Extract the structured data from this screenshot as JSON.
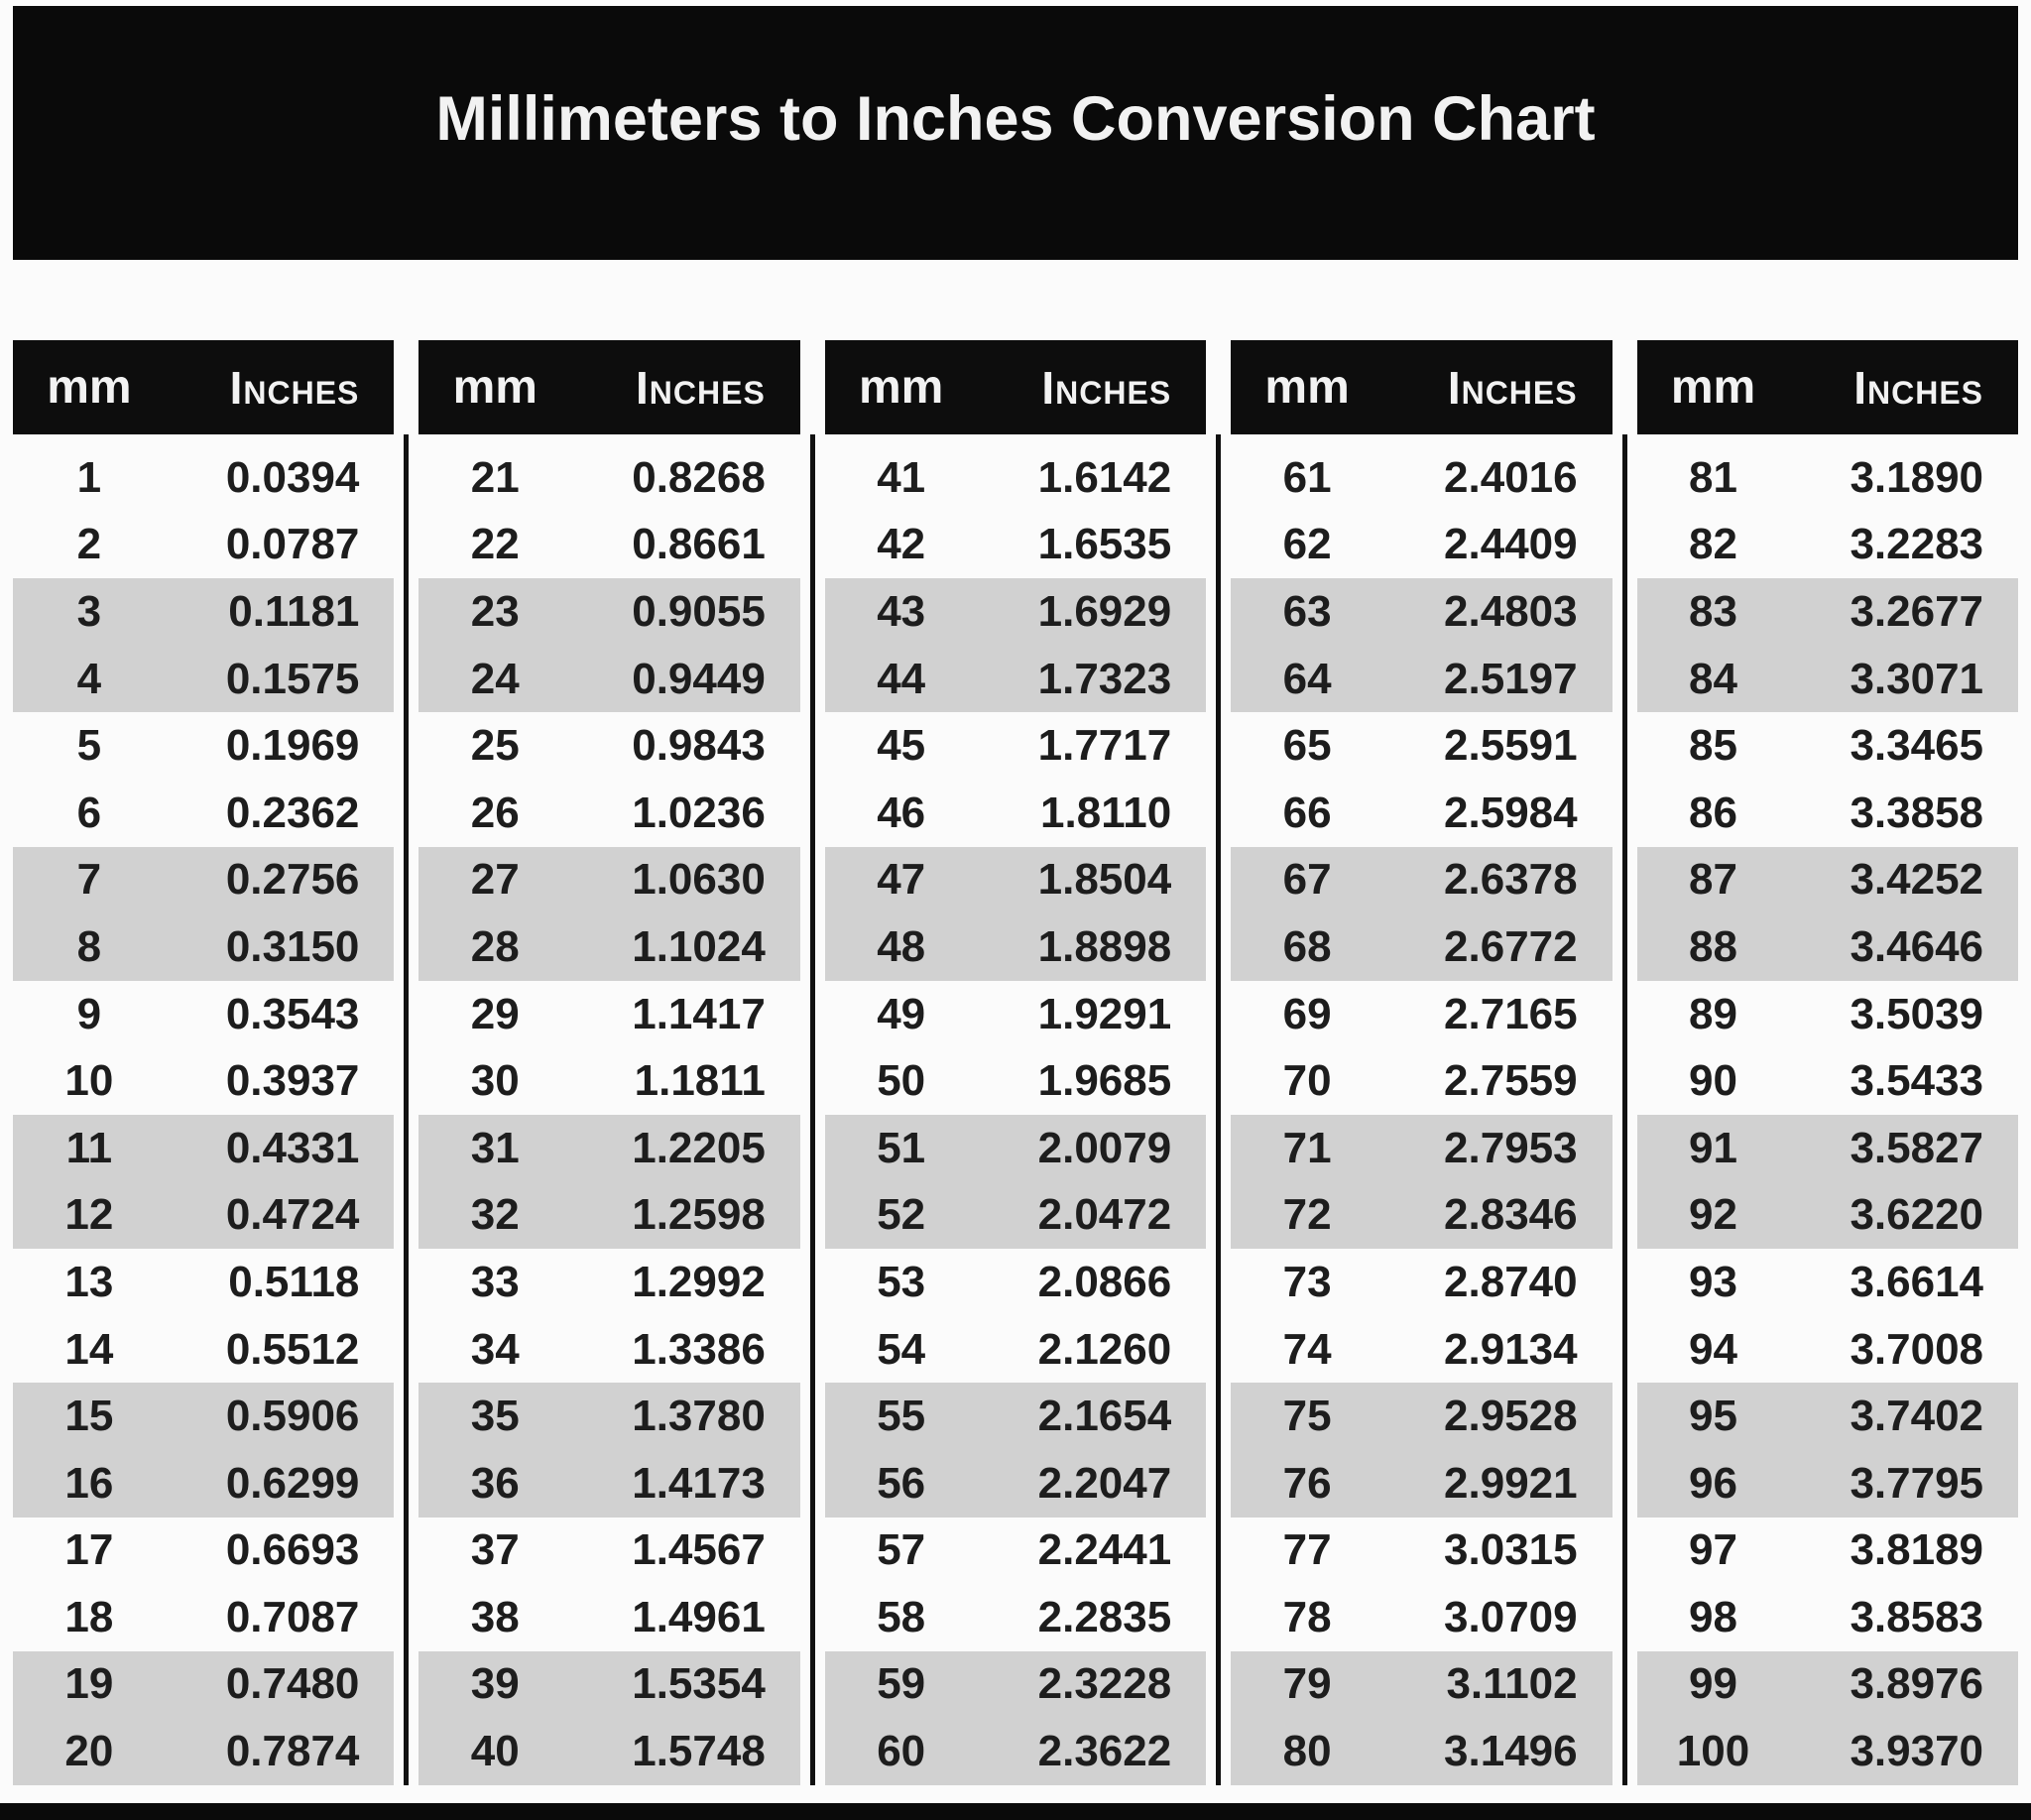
{
  "title": "Millimeters to Inches Conversion Chart",
  "col_headers": {
    "mm": "mm",
    "inches": "Inches"
  },
  "colors": {
    "banner_bg": "#0a0a0a",
    "header_bg": "#0d0d0d",
    "stripe": "#d1d1d1",
    "page_bg": "#fbfbfb",
    "text": "#1d1d1d",
    "header_text": "#f2f2f2",
    "divider": "#111111"
  },
  "groups": [
    {
      "rows": [
        {
          "mm": "1",
          "inches": "0.0394"
        },
        {
          "mm": "2",
          "inches": "0.0787"
        },
        {
          "mm": "3",
          "inches": "0.1181"
        },
        {
          "mm": "4",
          "inches": "0.1575"
        },
        {
          "mm": "5",
          "inches": "0.1969"
        },
        {
          "mm": "6",
          "inches": "0.2362"
        },
        {
          "mm": "7",
          "inches": "0.2756"
        },
        {
          "mm": "8",
          "inches": "0.3150"
        },
        {
          "mm": "9",
          "inches": "0.3543"
        },
        {
          "mm": "10",
          "inches": "0.3937"
        },
        {
          "mm": "11",
          "inches": "0.4331"
        },
        {
          "mm": "12",
          "inches": "0.4724"
        },
        {
          "mm": "13",
          "inches": "0.5118"
        },
        {
          "mm": "14",
          "inches": "0.5512"
        },
        {
          "mm": "15",
          "inches": "0.5906"
        },
        {
          "mm": "16",
          "inches": "0.6299"
        },
        {
          "mm": "17",
          "inches": "0.6693"
        },
        {
          "mm": "18",
          "inches": "0.7087"
        },
        {
          "mm": "19",
          "inches": "0.7480"
        },
        {
          "mm": "20",
          "inches": "0.7874"
        }
      ]
    },
    {
      "rows": [
        {
          "mm": "21",
          "inches": "0.8268"
        },
        {
          "mm": "22",
          "inches": "0.8661"
        },
        {
          "mm": "23",
          "inches": "0.9055"
        },
        {
          "mm": "24",
          "inches": "0.9449"
        },
        {
          "mm": "25",
          "inches": "0.9843"
        },
        {
          "mm": "26",
          "inches": "1.0236"
        },
        {
          "mm": "27",
          "inches": "1.0630"
        },
        {
          "mm": "28",
          "inches": "1.1024"
        },
        {
          "mm": "29",
          "inches": "1.1417"
        },
        {
          "mm": "30",
          "inches": "1.1811"
        },
        {
          "mm": "31",
          "inches": "1.2205"
        },
        {
          "mm": "32",
          "inches": "1.2598"
        },
        {
          "mm": "33",
          "inches": "1.2992"
        },
        {
          "mm": "34",
          "inches": "1.3386"
        },
        {
          "mm": "35",
          "inches": "1.3780"
        },
        {
          "mm": "36",
          "inches": "1.4173"
        },
        {
          "mm": "37",
          "inches": "1.4567"
        },
        {
          "mm": "38",
          "inches": "1.4961"
        },
        {
          "mm": "39",
          "inches": "1.5354"
        },
        {
          "mm": "40",
          "inches": "1.5748"
        }
      ]
    },
    {
      "rows": [
        {
          "mm": "41",
          "inches": "1.6142"
        },
        {
          "mm": "42",
          "inches": "1.6535"
        },
        {
          "mm": "43",
          "inches": "1.6929"
        },
        {
          "mm": "44",
          "inches": "1.7323"
        },
        {
          "mm": "45",
          "inches": "1.7717"
        },
        {
          "mm": "46",
          "inches": "1.8110"
        },
        {
          "mm": "47",
          "inches": "1.8504"
        },
        {
          "mm": "48",
          "inches": "1.8898"
        },
        {
          "mm": "49",
          "inches": "1.9291"
        },
        {
          "mm": "50",
          "inches": "1.9685"
        },
        {
          "mm": "51",
          "inches": "2.0079"
        },
        {
          "mm": "52",
          "inches": "2.0472"
        },
        {
          "mm": "53",
          "inches": "2.0866"
        },
        {
          "mm": "54",
          "inches": "2.1260"
        },
        {
          "mm": "55",
          "inches": "2.1654"
        },
        {
          "mm": "56",
          "inches": "2.2047"
        },
        {
          "mm": "57",
          "inches": "2.2441"
        },
        {
          "mm": "58",
          "inches": "2.2835"
        },
        {
          "mm": "59",
          "inches": "2.3228"
        },
        {
          "mm": "60",
          "inches": "2.3622"
        }
      ]
    },
    {
      "rows": [
        {
          "mm": "61",
          "inches": "2.4016"
        },
        {
          "mm": "62",
          "inches": "2.4409"
        },
        {
          "mm": "63",
          "inches": "2.4803"
        },
        {
          "mm": "64",
          "inches": "2.5197"
        },
        {
          "mm": "65",
          "inches": "2.5591"
        },
        {
          "mm": "66",
          "inches": "2.5984"
        },
        {
          "mm": "67",
          "inches": "2.6378"
        },
        {
          "mm": "68",
          "inches": "2.6772"
        },
        {
          "mm": "69",
          "inches": "2.7165"
        },
        {
          "mm": "70",
          "inches": "2.7559"
        },
        {
          "mm": "71",
          "inches": "2.7953"
        },
        {
          "mm": "72",
          "inches": "2.8346"
        },
        {
          "mm": "73",
          "inches": "2.8740"
        },
        {
          "mm": "74",
          "inches": "2.9134"
        },
        {
          "mm": "75",
          "inches": "2.9528"
        },
        {
          "mm": "76",
          "inches": "2.9921"
        },
        {
          "mm": "77",
          "inches": "3.0315"
        },
        {
          "mm": "78",
          "inches": "3.0709"
        },
        {
          "mm": "79",
          "inches": "3.1102"
        },
        {
          "mm": "80",
          "inches": "3.1496"
        }
      ]
    },
    {
      "rows": [
        {
          "mm": "81",
          "inches": "3.1890"
        },
        {
          "mm": "82",
          "inches": "3.2283"
        },
        {
          "mm": "83",
          "inches": "3.2677"
        },
        {
          "mm": "84",
          "inches": "3.3071"
        },
        {
          "mm": "85",
          "inches": "3.3465"
        },
        {
          "mm": "86",
          "inches": "3.3858"
        },
        {
          "mm": "87",
          "inches": "3.4252"
        },
        {
          "mm": "88",
          "inches": "3.4646"
        },
        {
          "mm": "89",
          "inches": "3.5039"
        },
        {
          "mm": "90",
          "inches": "3.5433"
        },
        {
          "mm": "91",
          "inches": "3.5827"
        },
        {
          "mm": "92",
          "inches": "3.6220"
        },
        {
          "mm": "93",
          "inches": "3.6614"
        },
        {
          "mm": "94",
          "inches": "3.7008"
        },
        {
          "mm": "95",
          "inches": "3.7402"
        },
        {
          "mm": "96",
          "inches": "3.7795"
        },
        {
          "mm": "97",
          "inches": "3.8189"
        },
        {
          "mm": "98",
          "inches": "3.8583"
        },
        {
          "mm": "99",
          "inches": "3.8976"
        },
        {
          "mm": "100",
          "inches": "3.9370"
        }
      ]
    }
  ]
}
